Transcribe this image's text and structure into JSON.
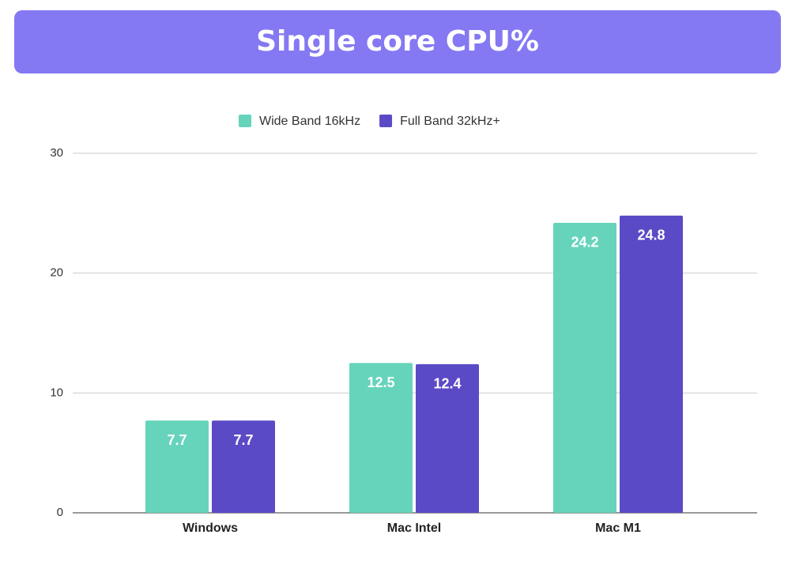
{
  "chart_data": {
    "type": "bar",
    "title": "Single core CPU%",
    "categories": [
      "Windows",
      "Mac Intel",
      "Mac M1"
    ],
    "series": [
      {
        "name": "Wide Band 16kHz",
        "color": "#66d4bb",
        "values": [
          7.7,
          12.5,
          24.2
        ]
      },
      {
        "name": "Full Band 32kHz+",
        "color": "#5b4ac6",
        "values": [
          7.7,
          12.4,
          24.8
        ]
      }
    ],
    "ylim": [
      0,
      30
    ],
    "yticks": [
      0,
      10,
      20,
      30
    ],
    "grid": true,
    "legend": "top"
  }
}
